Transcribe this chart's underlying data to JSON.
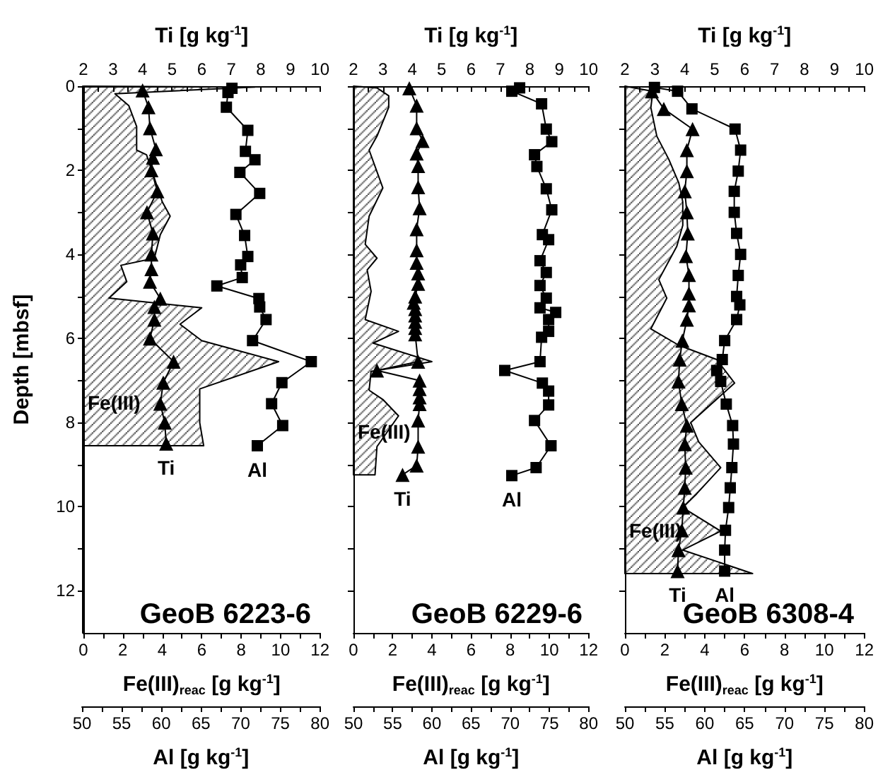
{
  "chart_data": [
    {
      "type": "line",
      "title": "GeoB 6223-6",
      "xlabel": "Fe(III)$_{reac}$ [g kg$^{-1}$]",
      "x2label": "Ti [g kg$^{-1}$]",
      "ylabel": "Depth [mbsf]",
      "xlim": [
        0,
        12
      ],
      "xticks": [
        0,
        {
          "value": 1,
          "label": null
        },
        2,
        {
          "value": 3,
          "label": null
        },
        4,
        {
          "value": 5,
          "label": null
        },
        6,
        {
          "value": 7,
          "label": null
        },
        8,
        {
          "value": 9,
          "label": null
        },
        10,
        {
          "value": 11,
          "label": null
        },
        12
      ],
      "x2lim": [
        2,
        10
      ],
      "x2ticks": [
        2,
        {
          "value": 2.5,
          "label": null
        },
        3,
        {
          "value": 3.5,
          "label": null
        },
        4,
        {
          "value": 4.5,
          "label": null
        },
        5,
        {
          "value": 5.5,
          "label": null
        },
        6,
        {
          "value": 6.5,
          "label": null
        },
        7,
        {
          "value": 7.5,
          "label": null
        },
        8,
        {
          "value": 8.5,
          "label": null
        },
        9,
        {
          "value": 9.5,
          "label": null
        },
        10
      ],
      "ylim": [
        13,
        0
      ],
      "yticks": [
        0,
        {
          "value": 1,
          "label": null
        },
        2,
        {
          "value": 3,
          "label": null
        },
        4,
        {
          "value": 5,
          "label": null
        },
        6,
        {
          "value": 7,
          "label": null
        },
        8,
        {
          "value": 9,
          "label": null
        },
        10,
        {
          "value": 11,
          "label": null
        },
        12
      ],
      "series": [
        {
          "type": "area",
          "color": "#000000",
          "x": [
            0,
            8.7,
            1.6,
            2.3,
            2.7,
            2.7,
            3.2,
            3.6,
            4.0,
            4.4,
            3.9,
            3.6,
            1.9,
            2.2,
            1.3,
            6.0,
            4.9,
            6.0,
            9.9,
            5.9,
            5.9,
            6.1,
            0
          ],
          "values": [
            0,
            0.02,
            0.18,
            0.46,
            0.96,
            1.52,
            1.63,
            2.19,
            2.75,
            3.09,
            3.53,
            4.09,
            4.26,
            4.65,
            5.04,
            5.27,
            5.66,
            6.05,
            6.55,
            7.2,
            8.0,
            8.55,
            8.55
          ]
        },
        {
          "color": "#000000",
          "axis": "x2",
          "marker": "triangle",
          "x": [
            4.0,
            4.2,
            4.25,
            4.45,
            4.35,
            4.3,
            4.5,
            4.15,
            4.35,
            4.3,
            4.3,
            4.25,
            4.6,
            4.4,
            4.4,
            4.25,
            5.05,
            4.7,
            4.6,
            4.75,
            4.8
          ],
          "values": [
            0.1,
            0.5,
            1.0,
            1.5,
            1.7,
            2.0,
            2.5,
            3.0,
            3.5,
            4.0,
            4.35,
            4.65,
            5.05,
            5.25,
            5.55,
            6.0,
            6.55,
            7.05,
            7.55,
            8.0,
            8.5
          ]
        }
      ],
      "annotations": [
        "Fe(III)",
        "Ti"
      ]
    },
    {
      "type": "line",
      "xlabel": "Al [g kg$^{-1}$]",
      "xlim": [
        50,
        80
      ],
      "xticks": [
        50,
        {
          "value": 52.5,
          "label": null
        },
        55,
        {
          "value": 57.5,
          "label": null
        },
        60,
        {
          "value": 62.5,
          "label": null
        },
        65,
        {
          "value": 67.5,
          "label": null
        },
        70,
        {
          "value": 72.5,
          "label": null
        },
        75,
        {
          "value": 77.5,
          "label": null
        },
        80
      ],
      "ylim": [
        13,
        0
      ],
      "tick_labels": "x",
      "series": [
        {
          "color": "#000000",
          "marker": "square",
          "x": [
            68.9,
            68.4,
            68.2,
            70.9,
            70.6,
            71.8,
            69.9,
            72.4,
            69.4,
            70.5,
            70.9,
            70.0,
            70.2,
            67.0,
            72.3,
            72.4,
            73.2,
            71.5,
            78.9,
            75.2,
            73.9,
            75.3,
            72.1
          ],
          "values": [
            0.05,
            0.15,
            0.5,
            1.05,
            1.55,
            1.75,
            2.05,
            2.55,
            3.05,
            3.55,
            4.05,
            4.25,
            4.55,
            4.75,
            5.05,
            5.25,
            5.55,
            6.05,
            6.55,
            7.05,
            7.55,
            8.07,
            8.55
          ]
        }
      ],
      "annotations": [
        "Al"
      ]
    },
    {
      "type": "line",
      "title": "GeoB 6229-6",
      "xlabel": "Fe(III)$_{reac}$ [g kg$^{-1}$]",
      "x2label": "Ti [g kg$^{-1}$]",
      "xlim": [
        0,
        12
      ],
      "xticks": [
        0,
        {
          "value": 1,
          "label": null
        },
        2,
        {
          "value": 3,
          "label": null
        },
        4,
        {
          "value": 5,
          "label": null
        },
        6,
        {
          "value": 7,
          "label": null
        },
        8,
        {
          "value": 9,
          "label": null
        },
        10,
        {
          "value": 11,
          "label": null
        },
        12
      ],
      "x2lim": [
        2,
        10
      ],
      "x2ticks": [
        2,
        {
          "value": 2.5,
          "label": null
        },
        3,
        {
          "value": 3.5,
          "label": null
        },
        4,
        {
          "value": 4.5,
          "label": null
        },
        5,
        {
          "value": 5.5,
          "label": null
        },
        6,
        {
          "value": 6.5,
          "label": null
        },
        7,
        {
          "value": 7.5,
          "label": null
        },
        8,
        {
          "value": 8.5,
          "label": null
        },
        9,
        {
          "value": 9.5,
          "label": null
        },
        10
      ],
      "ylim": [
        13,
        0
      ],
      "yticks": [
        0,
        {
          "value": 1,
          "label": null
        },
        2,
        {
          "value": 3,
          "label": null
        },
        4,
        {
          "value": 5,
          "label": null
        },
        6,
        {
          "value": 7,
          "label": null
        },
        8,
        {
          "value": 9,
          "label": null
        },
        10,
        {
          "value": 11,
          "label": null
        },
        12
      ],
      "tick_labels": "x",
      "series": [
        {
          "type": "area",
          "color": "#000000",
          "x": [
            0,
            1.2,
            1.8,
            1.8,
            1.2,
            0.8,
            1.5,
            0.8,
            0.6,
            1.2,
            0.7,
            0.9,
            0.6,
            2.3,
            1.0,
            4.0,
            0.9,
            0.8,
            1.5,
            2.3,
            1.2,
            1.1,
            0
          ],
          "values": [
            0,
            0.04,
            0.23,
            0.5,
            1.19,
            1.52,
            2.42,
            3.09,
            3.76,
            4.09,
            4.37,
            4.88,
            5.55,
            5.83,
            6.11,
            6.55,
            6.78,
            7.23,
            7.45,
            7.84,
            8.57,
            9.24,
            9.24
          ]
        },
        {
          "color": "#000000",
          "axis": "x2",
          "marker": "triangle",
          "x": [
            3.9,
            4.15,
            4.15,
            4.35,
            4.15,
            4.2,
            4.2,
            4.25,
            4.15,
            4.15,
            4.15,
            4.2,
            4.2,
            4.1,
            4.05,
            4.1,
            4.1,
            4.1,
            4.1,
            4.1,
            4.2,
            2.8,
            4.25,
            4.25,
            4.25,
            4.25,
            4.2,
            4.2,
            4.15,
            3.67
          ],
          "values": [
            0.05,
            0.46,
            1.0,
            1.3,
            1.6,
            1.9,
            2.4,
            2.9,
            3.4,
            3.9,
            4.2,
            4.45,
            4.7,
            5.0,
            5.15,
            5.3,
            5.45,
            5.6,
            5.75,
            5.9,
            6.55,
            6.76,
            7.0,
            7.2,
            7.4,
            7.56,
            7.95,
            8.57,
            9.02,
            9.24
          ]
        }
      ],
      "annotations": [
        "Fe(III)",
        "Ti"
      ]
    },
    {
      "type": "line",
      "xlabel": "Al [g kg$^{-1}$]",
      "xlim": [
        50,
        80
      ],
      "xticks": [
        50,
        {
          "value": 52.5,
          "label": null
        },
        55,
        {
          "value": 57.5,
          "label": null
        },
        60,
        {
          "value": 62.5,
          "label": null
        },
        65,
        {
          "value": 67.5,
          "label": null
        },
        70,
        {
          "value": 72.5,
          "label": null
        },
        75,
        {
          "value": 77.5,
          "label": null
        },
        80
      ],
      "ylim": [
        13,
        0
      ],
      "tick_labels": "x",
      "series": [
        {
          "color": "#000000",
          "marker": "square",
          "x": [
            71.2,
            70.2,
            74.0,
            74.6,
            75.3,
            73.1,
            73.4,
            74.6,
            75.3,
            74.1,
            74.9,
            73.8,
            74.6,
            73.8,
            74.6,
            73.8,
            75.8,
            74.9,
            74.9,
            74.0,
            73.8,
            69.3,
            74.1,
            74.9,
            74.9,
            73.1,
            75.2,
            73.3,
            70.2
          ],
          "values": [
            0.04,
            0.12,
            0.42,
            1.02,
            1.32,
            1.63,
            1.91,
            2.44,
            2.94,
            3.53,
            3.65,
            4.15,
            4.43,
            4.74,
            5.04,
            5.27,
            5.38,
            5.55,
            5.83,
            5.97,
            6.55,
            6.76,
            7.06,
            7.25,
            7.58,
            7.95,
            8.55,
            9.07,
            9.26
          ]
        }
      ],
      "annotations": [
        "Al"
      ]
    },
    {
      "type": "line",
      "title": "GeoB 6308-4",
      "xlabel": "Fe(III)$_{reac}$ [g kg$^{-1}$]",
      "x2label": "Ti [g kg$^{-1}$]",
      "xlim": [
        0,
        12
      ],
      "xticks": [
        0,
        {
          "value": 1,
          "label": null
        },
        2,
        {
          "value": 3,
          "label": null
        },
        4,
        {
          "value": 5,
          "label": null
        },
        6,
        {
          "value": 7,
          "label": null
        },
        8,
        {
          "value": 9,
          "label": null
        },
        10,
        {
          "value": 11,
          "label": null
        },
        12
      ],
      "x2lim": [
        2,
        10
      ],
      "x2ticks": [
        2,
        {
          "value": 2.5,
          "label": null
        },
        3,
        {
          "value": 3.5,
          "label": null
        },
        4,
        {
          "value": 4.5,
          "label": null
        },
        5,
        {
          "value": 5.5,
          "label": null
        },
        6,
        {
          "value": 6.5,
          "label": null
        },
        7,
        {
          "value": 7.5,
          "label": null
        },
        8,
        {
          "value": 8.5,
          "label": null
        },
        9,
        {
          "value": 9.5,
          "label": null
        },
        10
      ],
      "ylim": [
        13,
        0
      ],
      "yticks": [
        0,
        {
          "value": 1,
          "label": null
        },
        2,
        {
          "value": 3,
          "label": null
        },
        4,
        {
          "value": 5,
          "label": null
        },
        6,
        {
          "value": 7,
          "label": null
        },
        8,
        {
          "value": 9,
          "label": null
        },
        10,
        {
          "value": 11,
          "label": null
        },
        12
      ],
      "tick_labels": "x",
      "series": [
        {
          "type": "area",
          "color": "#000000",
          "x": [
            0,
            1.4,
            1.3,
            1.6,
            2.2,
            2.7,
            2.9,
            2.9,
            2.6,
            1.7,
            2.1,
            1.3,
            2.7,
            4.6,
            5.5,
            3.3,
            3.7,
            4.8,
            3.6,
            2.9,
            4.8,
            2.9,
            6.4,
            0
          ],
          "values": [
            0,
            0.12,
            0.51,
            1.19,
            1.74,
            2.3,
            2.75,
            3.31,
            3.81,
            4.6,
            5.04,
            5.77,
            6.16,
            6.5,
            7.06,
            8.0,
            8.46,
            9.07,
            9.69,
            10.02,
            10.58,
            11.03,
            11.59,
            11.59
          ]
        },
        {
          "color": "#000000",
          "axis": "x2",
          "marker": "triangle",
          "x": [
            2.9,
            3.3,
            4.26,
            4.07,
            4.07,
            4.0,
            4.07,
            4.1,
            4.04,
            4.14,
            4.14,
            4.14,
            4.07,
            3.92,
            3.83,
            3.79,
            3.9,
            4.07,
            4.0,
            4.03,
            4.0,
            3.95,
            3.9,
            3.79,
            3.76
          ],
          "values": [
            0.12,
            0.54,
            1.02,
            1.52,
            2.02,
            2.5,
            3.0,
            3.5,
            4.04,
            4.49,
            4.93,
            5.21,
            5.55,
            6.05,
            6.5,
            7.02,
            7.56,
            8.07,
            8.51,
            9.07,
            9.55,
            10.02,
            10.56,
            11.03,
            11.53
          ]
        }
      ],
      "annotations": [
        "Fe(III)",
        "Ti"
      ]
    },
    {
      "type": "line",
      "xlabel": "Al [g kg$^{-1}$]",
      "xlim": [
        50,
        80
      ],
      "xticks": [
        50,
        {
          "value": 52.5,
          "label": null
        },
        55,
        {
          "value": 57.5,
          "label": null
        },
        60,
        {
          "value": 62.5,
          "label": null
        },
        65,
        {
          "value": 67.5,
          "label": null
        },
        70,
        {
          "value": 72.5,
          "label": null
        },
        75,
        {
          "value": 77.5,
          "label": null
        },
        80
      ],
      "ylim": [
        13,
        0
      ],
      "tick_labels": "x",
      "series": [
        {
          "color": "#000000",
          "marker": "square",
          "x": [
            53.7,
            56.6,
            58.4,
            63.8,
            64.5,
            64.2,
            63.7,
            63.7,
            64.0,
            64.5,
            64.2,
            64.0,
            64.4,
            64.0,
            62.5,
            62.2,
            61.5,
            62.0,
            62.7,
            63.5,
            63.6,
            63.4,
            63.2,
            63.0,
            62.6,
            62.5,
            62.5
          ],
          "values": [
            0.03,
            0.12,
            0.54,
            1.02,
            1.52,
            2.02,
            2.5,
            3.0,
            3.5,
            4.0,
            4.5,
            5.0,
            5.2,
            5.55,
            6.05,
            6.5,
            6.76,
            7.02,
            7.56,
            8.07,
            8.51,
            9.07,
            9.55,
            10.02,
            10.56,
            11.03,
            11.53
          ]
        }
      ],
      "annotations": [
        "Al"
      ]
    }
  ]
}
